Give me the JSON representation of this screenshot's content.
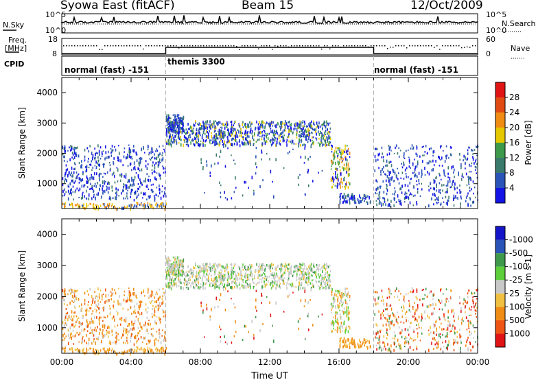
{
  "header": {
    "title": "Syowa East (fitACF)",
    "beam": "Beam 15",
    "date": "12/Oct/2009"
  },
  "ancillary": {
    "nsky_label": "N.Sky",
    "nsearch_label": "N.Search",
    "freq_label_line1": "Freq.",
    "freq_label_line2": "[MHz]",
    "nave_label": "Nave",
    "cpid_label": "CPID",
    "noise_ticks": [
      "10^5",
      "10^0"
    ],
    "freq_ticks": [
      "18",
      "8"
    ],
    "nave_ticks": [
      "60",
      "0"
    ]
  },
  "cpid_modes": [
    {
      "label": "normal (fast) -151",
      "start_hour": 0,
      "end_hour": 6
    },
    {
      "label": "themis 3300",
      "start_hour": 6,
      "end_hour": 18
    },
    {
      "label": "normal (fast) -151",
      "start_hour": 18,
      "end_hour": 24
    }
  ],
  "colors": {
    "power": [
      "#1414e6",
      "#2a54b8",
      "#3a7a6c",
      "#3d9a4a",
      "#e6c800",
      "#f08c14",
      "#e04b14",
      "#e01414"
    ],
    "velocity": [
      "#e01414",
      "#ee5514",
      "#f08c14",
      "#f0c040",
      "#c8c8c8",
      "#5ccf3a",
      "#3e9a4a",
      "#2a54b8",
      "#1414c8"
    ]
  },
  "chart_data": [
    {
      "type": "heatmap",
      "name": "power",
      "ylabel": "Slant Range [km]",
      "colorbar_label": "Power [dB]",
      "colorbar_ticks": [
        "4",
        "8",
        "12",
        "16",
        "20",
        "24",
        "28"
      ],
      "yticks": [
        "1000",
        "2000",
        "3000",
        "4000"
      ],
      "ylim": [
        180,
        4500
      ],
      "xlim": [
        0,
        24
      ],
      "dominant_ranges": [
        {
          "t_start": 0,
          "t_end": 6,
          "range_min": 400,
          "range_max": 2300,
          "level": "low"
        },
        {
          "t_start": 6,
          "t_end": 15.5,
          "range_min": 2300,
          "range_max": 3300,
          "level": "low"
        },
        {
          "t_start": 15.5,
          "t_end": 16.5,
          "range_min": 900,
          "range_max": 2300,
          "level": "medium"
        },
        {
          "t_start": 18,
          "t_end": 24,
          "range_min": 300,
          "range_max": 2300,
          "level": "low"
        }
      ]
    },
    {
      "type": "heatmap",
      "name": "velocity",
      "xlabel": "Time UT",
      "ylabel": "Slant Range [km]",
      "colorbar_label": "Velocity [m s-1]",
      "colorbar_ticks": [
        "1000",
        "500",
        "100",
        "25",
        "-25",
        "-100",
        "-500",
        "-1000"
      ],
      "yticks": [
        "1000",
        "2000",
        "3000",
        "4000"
      ],
      "xticks": [
        "00:00",
        "04:00",
        "08:00",
        "12:00",
        "16:00",
        "20:00",
        "00:00"
      ],
      "ylim": [
        180,
        4500
      ],
      "xlim": [
        0,
        24
      ]
    }
  ]
}
